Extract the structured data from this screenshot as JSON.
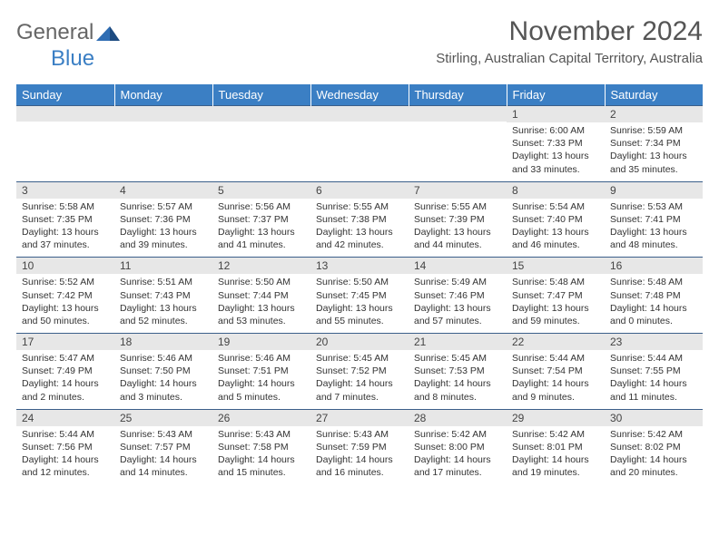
{
  "logo": {
    "part1": "General",
    "part2": "Blue"
  },
  "title": "November 2024",
  "location": "Stirling, Australian Capital Territory, Australia",
  "colors": {
    "header_bg": "#3b7fc4",
    "header_text": "#ffffff",
    "daynum_bg": "#e7e7e7",
    "cell_border": "#3b5f8a",
    "text": "#333333",
    "title_text": "#555555"
  },
  "weekdays": [
    "Sunday",
    "Monday",
    "Tuesday",
    "Wednesday",
    "Thursday",
    "Friday",
    "Saturday"
  ],
  "weeks": [
    [
      {
        "n": "",
        "sunrise": "",
        "sunset": "",
        "daylight": ""
      },
      {
        "n": "",
        "sunrise": "",
        "sunset": "",
        "daylight": ""
      },
      {
        "n": "",
        "sunrise": "",
        "sunset": "",
        "daylight": ""
      },
      {
        "n": "",
        "sunrise": "",
        "sunset": "",
        "daylight": ""
      },
      {
        "n": "",
        "sunrise": "",
        "sunset": "",
        "daylight": ""
      },
      {
        "n": "1",
        "sunrise": "Sunrise: 6:00 AM",
        "sunset": "Sunset: 7:33 PM",
        "daylight": "Daylight: 13 hours and 33 minutes."
      },
      {
        "n": "2",
        "sunrise": "Sunrise: 5:59 AM",
        "sunset": "Sunset: 7:34 PM",
        "daylight": "Daylight: 13 hours and 35 minutes."
      }
    ],
    [
      {
        "n": "3",
        "sunrise": "Sunrise: 5:58 AM",
        "sunset": "Sunset: 7:35 PM",
        "daylight": "Daylight: 13 hours and 37 minutes."
      },
      {
        "n": "4",
        "sunrise": "Sunrise: 5:57 AM",
        "sunset": "Sunset: 7:36 PM",
        "daylight": "Daylight: 13 hours and 39 minutes."
      },
      {
        "n": "5",
        "sunrise": "Sunrise: 5:56 AM",
        "sunset": "Sunset: 7:37 PM",
        "daylight": "Daylight: 13 hours and 41 minutes."
      },
      {
        "n": "6",
        "sunrise": "Sunrise: 5:55 AM",
        "sunset": "Sunset: 7:38 PM",
        "daylight": "Daylight: 13 hours and 42 minutes."
      },
      {
        "n": "7",
        "sunrise": "Sunrise: 5:55 AM",
        "sunset": "Sunset: 7:39 PM",
        "daylight": "Daylight: 13 hours and 44 minutes."
      },
      {
        "n": "8",
        "sunrise": "Sunrise: 5:54 AM",
        "sunset": "Sunset: 7:40 PM",
        "daylight": "Daylight: 13 hours and 46 minutes."
      },
      {
        "n": "9",
        "sunrise": "Sunrise: 5:53 AM",
        "sunset": "Sunset: 7:41 PM",
        "daylight": "Daylight: 13 hours and 48 minutes."
      }
    ],
    [
      {
        "n": "10",
        "sunrise": "Sunrise: 5:52 AM",
        "sunset": "Sunset: 7:42 PM",
        "daylight": "Daylight: 13 hours and 50 minutes."
      },
      {
        "n": "11",
        "sunrise": "Sunrise: 5:51 AM",
        "sunset": "Sunset: 7:43 PM",
        "daylight": "Daylight: 13 hours and 52 minutes."
      },
      {
        "n": "12",
        "sunrise": "Sunrise: 5:50 AM",
        "sunset": "Sunset: 7:44 PM",
        "daylight": "Daylight: 13 hours and 53 minutes."
      },
      {
        "n": "13",
        "sunrise": "Sunrise: 5:50 AM",
        "sunset": "Sunset: 7:45 PM",
        "daylight": "Daylight: 13 hours and 55 minutes."
      },
      {
        "n": "14",
        "sunrise": "Sunrise: 5:49 AM",
        "sunset": "Sunset: 7:46 PM",
        "daylight": "Daylight: 13 hours and 57 minutes."
      },
      {
        "n": "15",
        "sunrise": "Sunrise: 5:48 AM",
        "sunset": "Sunset: 7:47 PM",
        "daylight": "Daylight: 13 hours and 59 minutes."
      },
      {
        "n": "16",
        "sunrise": "Sunrise: 5:48 AM",
        "sunset": "Sunset: 7:48 PM",
        "daylight": "Daylight: 14 hours and 0 minutes."
      }
    ],
    [
      {
        "n": "17",
        "sunrise": "Sunrise: 5:47 AM",
        "sunset": "Sunset: 7:49 PM",
        "daylight": "Daylight: 14 hours and 2 minutes."
      },
      {
        "n": "18",
        "sunrise": "Sunrise: 5:46 AM",
        "sunset": "Sunset: 7:50 PM",
        "daylight": "Daylight: 14 hours and 3 minutes."
      },
      {
        "n": "19",
        "sunrise": "Sunrise: 5:46 AM",
        "sunset": "Sunset: 7:51 PM",
        "daylight": "Daylight: 14 hours and 5 minutes."
      },
      {
        "n": "20",
        "sunrise": "Sunrise: 5:45 AM",
        "sunset": "Sunset: 7:52 PM",
        "daylight": "Daylight: 14 hours and 7 minutes."
      },
      {
        "n": "21",
        "sunrise": "Sunrise: 5:45 AM",
        "sunset": "Sunset: 7:53 PM",
        "daylight": "Daylight: 14 hours and 8 minutes."
      },
      {
        "n": "22",
        "sunrise": "Sunrise: 5:44 AM",
        "sunset": "Sunset: 7:54 PM",
        "daylight": "Daylight: 14 hours and 9 minutes."
      },
      {
        "n": "23",
        "sunrise": "Sunrise: 5:44 AM",
        "sunset": "Sunset: 7:55 PM",
        "daylight": "Daylight: 14 hours and 11 minutes."
      }
    ],
    [
      {
        "n": "24",
        "sunrise": "Sunrise: 5:44 AM",
        "sunset": "Sunset: 7:56 PM",
        "daylight": "Daylight: 14 hours and 12 minutes."
      },
      {
        "n": "25",
        "sunrise": "Sunrise: 5:43 AM",
        "sunset": "Sunset: 7:57 PM",
        "daylight": "Daylight: 14 hours and 14 minutes."
      },
      {
        "n": "26",
        "sunrise": "Sunrise: 5:43 AM",
        "sunset": "Sunset: 7:58 PM",
        "daylight": "Daylight: 14 hours and 15 minutes."
      },
      {
        "n": "27",
        "sunrise": "Sunrise: 5:43 AM",
        "sunset": "Sunset: 7:59 PM",
        "daylight": "Daylight: 14 hours and 16 minutes."
      },
      {
        "n": "28",
        "sunrise": "Sunrise: 5:42 AM",
        "sunset": "Sunset: 8:00 PM",
        "daylight": "Daylight: 14 hours and 17 minutes."
      },
      {
        "n": "29",
        "sunrise": "Sunrise: 5:42 AM",
        "sunset": "Sunset: 8:01 PM",
        "daylight": "Daylight: 14 hours and 19 minutes."
      },
      {
        "n": "30",
        "sunrise": "Sunrise: 5:42 AM",
        "sunset": "Sunset: 8:02 PM",
        "daylight": "Daylight: 14 hours and 20 minutes."
      }
    ]
  ]
}
